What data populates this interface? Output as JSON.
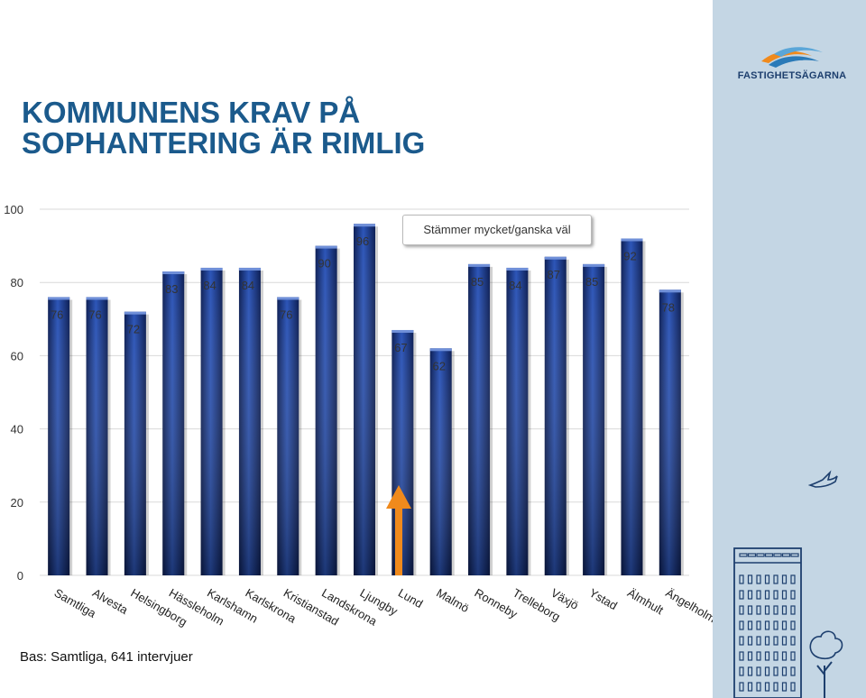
{
  "title": {
    "line1": "KOMMUNENS KRAV PÅ",
    "line2": "SOPHANTERING ÄR RIMLIG"
  },
  "logo": {
    "text": "FASTIGHETSÄGARNA",
    "icon": "wave-logo-icon"
  },
  "base_note": "Bas: Samtliga, 641 intervjuer",
  "colors": {
    "bar": "#16307a",
    "bar_light": "#3a62c4",
    "title": "#1b5a8c",
    "side_panel": "#c4d6e4",
    "arrow": "#f08a1c"
  },
  "chart_data": {
    "type": "bar",
    "categories": [
      "Samtliga",
      "Alvesta",
      "Helsingborg",
      "Hässleholm",
      "Karlshamn",
      "Karlskrona",
      "Kristianstad",
      "Landskrona",
      "Ljungby",
      "Lund",
      "Malmö",
      "Ronneby",
      "Trelleborg",
      "Växjö",
      "Ystad",
      "Älmhult",
      "Ängelholm"
    ],
    "series": [
      {
        "name": "Stämmer mycket/ganska väl",
        "values": [
          76,
          76,
          72,
          83,
          84,
          84,
          76,
          90,
          96,
          67,
          62,
          85,
          84,
          87,
          85,
          92,
          78
        ]
      }
    ],
    "value_labels": [
      "76",
      "76",
      "72",
      "83",
      "84",
      "84",
      "76",
      "90",
      "96",
      "67",
      "62",
      "85",
      "84",
      "87",
      "85",
      "92",
      "78"
    ],
    "ylim": [
      0,
      100
    ],
    "yticks": [
      "0",
      "20",
      "40",
      "60",
      "80",
      "100"
    ],
    "grid": true,
    "legend_placement": "top-center",
    "highlight": {
      "category": "Lund",
      "marker": "up-arrow"
    }
  }
}
